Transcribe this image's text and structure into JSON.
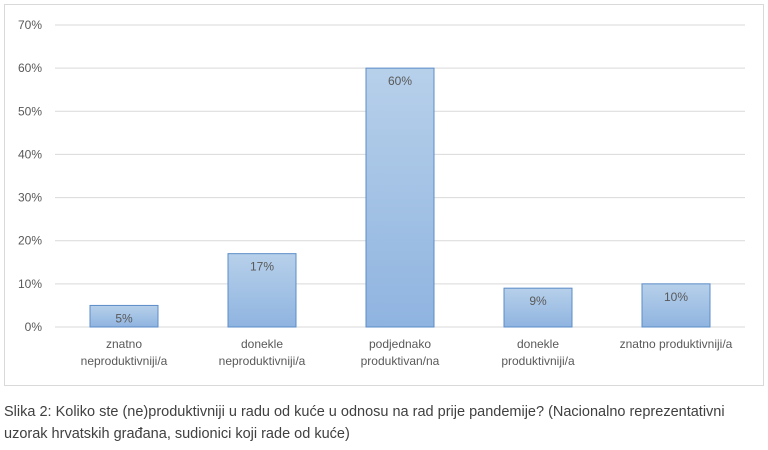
{
  "chart_data": {
    "type": "bar",
    "categories": [
      [
        "znatno",
        "neproduktivniji/a"
      ],
      [
        "donekle",
        "neproduktivniji/a"
      ],
      [
        "podjednako",
        "produktivan/na"
      ],
      [
        "donekle",
        "produktivniji/a"
      ],
      [
        "znatno produktivniji/a"
      ]
    ],
    "values": [
      5,
      17,
      60,
      9,
      10
    ],
    "data_labels": [
      "5%",
      "17%",
      "60%",
      "9%",
      "10%"
    ],
    "y_ticks": [
      "0%",
      "10%",
      "20%",
      "30%",
      "40%",
      "50%",
      "60%",
      "70%"
    ],
    "ylim": [
      0,
      70
    ],
    "grid": true,
    "legend": "none",
    "colors": {
      "bar_top": "#b7d0ea",
      "bar_bottom": "#8fb4e0",
      "bar_border": "#5b8cc8",
      "grid": "#d9d9d9",
      "text": "#595959"
    }
  },
  "caption": "Slika 2: Koliko ste (ne)produktivniji u radu od kuće u odnosu na rad prije pandemije? (Nacionalno reprezentativni uzorak hrvatskih građana, sudionici koji rade od kuće)"
}
